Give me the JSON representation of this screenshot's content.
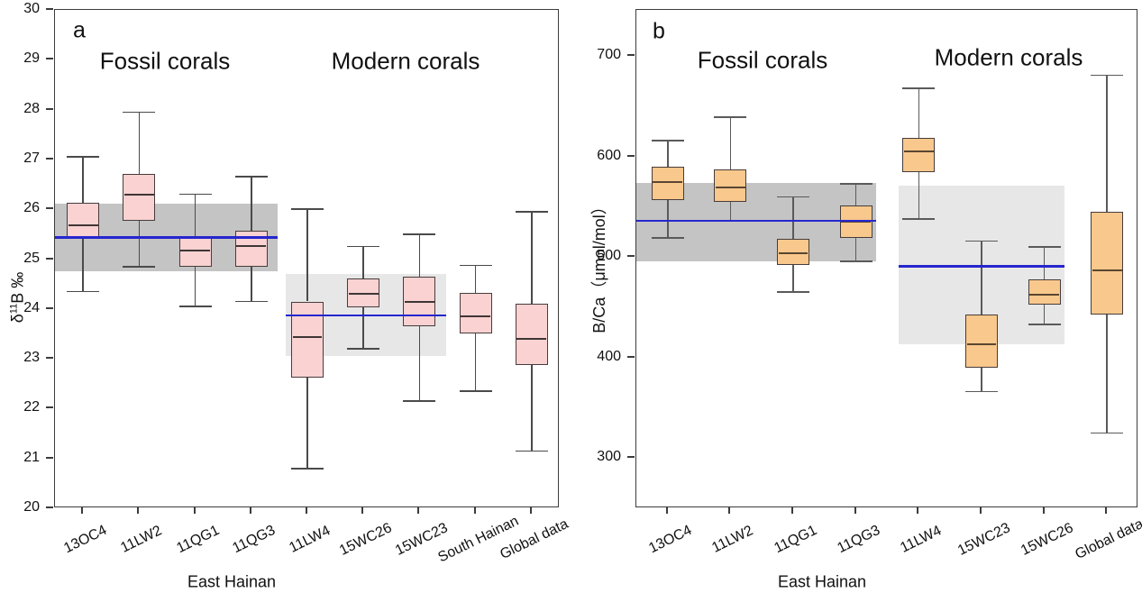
{
  "chart_data": [
    {
      "type": "box",
      "panel_letter": "a",
      "group_labels": [
        "Fossil corals",
        "Modern corals"
      ],
      "ylabel": {
        "prefix": "δ",
        "sup": "11",
        "rest": "B ‰"
      },
      "xlabel": "East Hainan",
      "ylim": [
        20,
        30
      ],
      "yticks": [
        "20",
        "21",
        "22",
        "23",
        "24",
        "25",
        "26",
        "27",
        "28",
        "29",
        "30"
      ],
      "ytick_values": [
        20,
        21,
        22,
        23,
        24,
        25,
        26,
        27,
        28,
        29,
        30
      ],
      "grid": false,
      "categories": [
        "13OC4",
        "11LW2",
        "11QG1",
        "11QG3",
        "11LW4",
        "15WC26",
        "15WC23",
        "South Hainan",
        "Global data"
      ],
      "boxes": [
        {
          "name": "13OC4",
          "whisker_low": 24.35,
          "q1": 25.4,
          "median": 25.67,
          "q3": 26.13,
          "whisker_high": 27.05
        },
        {
          "name": "11LW2",
          "whisker_low": 24.85,
          "q1": 25.77,
          "median": 26.3,
          "q3": 26.7,
          "whisker_high": 27.95
        },
        {
          "name": "11QG1",
          "whisker_low": 24.05,
          "q1": 24.85,
          "median": 25.17,
          "q3": 25.45,
          "whisker_high": 26.3
        },
        {
          "name": "11QG3",
          "whisker_low": 24.15,
          "q1": 24.85,
          "median": 25.27,
          "q3": 25.57,
          "whisker_high": 26.65
        },
        {
          "name": "11LW4",
          "whisker_low": 20.8,
          "q1": 22.62,
          "median": 23.44,
          "q3": 24.15,
          "whisker_high": 26.0
        },
        {
          "name": "15WC26",
          "whisker_low": 23.2,
          "q1": 24.04,
          "median": 24.3,
          "q3": 24.62,
          "whisker_high": 25.25
        },
        {
          "name": "15WC23",
          "whisker_low": 22.15,
          "q1": 23.65,
          "median": 24.15,
          "q3": 24.65,
          "whisker_high": 25.5
        },
        {
          "name": "South Hainan",
          "whisker_low": 22.35,
          "q1": 23.5,
          "median": 23.85,
          "q3": 24.33,
          "whisker_high": 24.87
        },
        {
          "name": "Global data",
          "whisker_low": 21.15,
          "q1": 22.87,
          "median": 23.4,
          "q3": 24.1,
          "whisker_high": 25.95
        }
      ],
      "bands": [
        {
          "group": "fossil",
          "value_from": 24.76,
          "value_to": 26.11,
          "cat_from": -0.5,
          "cat_to": 3.47,
          "color": "#c4c4c4"
        },
        {
          "group": "modern",
          "value_from": 23.05,
          "value_to": 24.71,
          "cat_from": 3.62,
          "cat_to": 6.47,
          "color": "#e7e7e7"
        }
      ],
      "reference_lines": [
        {
          "group": "fossil",
          "value": 25.43,
          "cat_from": -0.5,
          "cat_to": 3.47,
          "color": "#2626cf"
        },
        {
          "group": "modern",
          "value": 23.87,
          "cat_from": 3.62,
          "cat_to": 6.47,
          "color": "#2626cf"
        }
      ],
      "colors": {
        "box_fill": "#fad2d2",
        "box_border": "#473c3c",
        "median": "#3f3636",
        "whisker": "#4a4a4a"
      }
    },
    {
      "type": "box",
      "panel_letter": "b",
      "group_labels": [
        "Fossil corals",
        "Modern corals"
      ],
      "ylabel": {
        "prefix": "B/Ca（μmol/mol）",
        "sup": "",
        "rest": ""
      },
      "xlabel": "East Hainan",
      "ylim": [
        250,
        746
      ],
      "yticks": [
        "300",
        "400",
        "500",
        "600",
        "700"
      ],
      "ytick_values": [
        300,
        400,
        500,
        600,
        700
      ],
      "grid": false,
      "categories": [
        "13OC4",
        "11LW2",
        "11QG1",
        "11QG3",
        "11LW4",
        "15WC23",
        "15WC26",
        "Global data"
      ],
      "boxes": [
        {
          "name": "13OC4",
          "whisker_low": 519,
          "q1": 557,
          "median": 575,
          "q3": 590,
          "whisker_high": 616
        },
        {
          "name": "11LW2",
          "whisker_low": 536,
          "q1": 555,
          "median": 569,
          "q3": 587,
          "whisker_high": 639
        },
        {
          "name": "11QG1",
          "whisker_low": 465,
          "q1": 492,
          "median": 504,
          "q3": 518,
          "whisker_high": 560
        },
        {
          "name": "11QG3",
          "whisker_low": 496,
          "q1": 519,
          "median": 535,
          "q3": 551,
          "whisker_high": 573
        },
        {
          "name": "11LW4",
          "whisker_low": 538,
          "q1": 585,
          "median": 605,
          "q3": 619,
          "whisker_high": 668
        },
        {
          "name": "15WC23",
          "whisker_low": 366,
          "q1": 390,
          "median": 413,
          "q3": 443,
          "whisker_high": 516
        },
        {
          "name": "15WC26",
          "whisker_low": 433,
          "q1": 453,
          "median": 463,
          "q3": 478,
          "whisker_high": 510
        },
        {
          "name": "Global data",
          "whisker_low": 325,
          "q1": 443,
          "median": 487,
          "q3": 545,
          "whisker_high": 681
        }
      ],
      "bands": [
        {
          "group": "fossil",
          "value_from": 496,
          "value_to": 574,
          "cat_from": -0.5,
          "cat_to": 3.32,
          "color": "#c4c4c4"
        },
        {
          "group": "modern",
          "value_from": 413,
          "value_to": 571,
          "cat_from": 3.68,
          "cat_to": 6.32,
          "color": "#e7e7e7"
        }
      ],
      "reference_lines": [
        {
          "group": "fossil",
          "value": 536,
          "cat_from": -0.5,
          "cat_to": 3.32,
          "color": "#2626cf"
        },
        {
          "group": "modern",
          "value": 491,
          "cat_from": 3.68,
          "cat_to": 6.32,
          "color": "#2626cf"
        }
      ],
      "colors": {
        "box_fill": "#f9c88c",
        "box_border": "#473c3c",
        "median": "#5a4632",
        "whisker": "#5a5a5a"
      }
    }
  ]
}
